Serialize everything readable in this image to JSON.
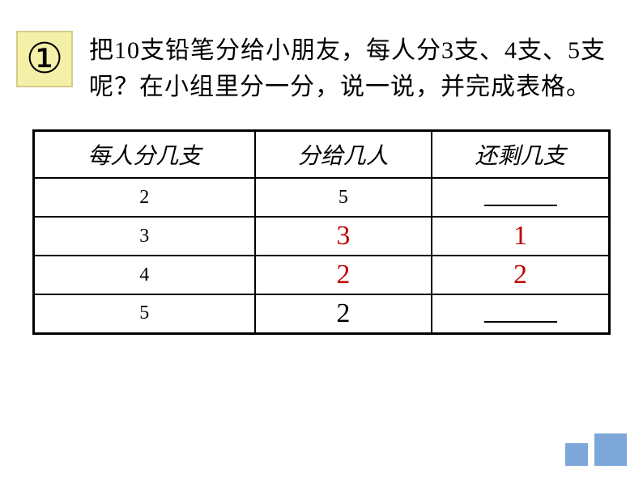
{
  "badge": {
    "number": "①",
    "bg_color": "#f5f0a8",
    "border_color": "#d4cc8a"
  },
  "problem": {
    "text": "把10支铅笔分给小朋友，每人分3支、4支、5支呢？在小组里分一分，说一说，并完成表格。"
  },
  "table": {
    "headers": [
      "每人分几支",
      "分给几人",
      "还剩几支"
    ],
    "rows": [
      {
        "col1": "2",
        "col2": "5",
        "col3_blank": true
      },
      {
        "col1": "3",
        "col2": "3",
        "col3": "1",
        "col2_red": true,
        "col3_red": true
      },
      {
        "col1": "4",
        "col2": "2",
        "col3": "2",
        "col2_red": true,
        "col3_red": true
      },
      {
        "col1": "5",
        "col2": "2",
        "col3_blank": true,
        "col2_big": true
      }
    ],
    "answer_color": "#c00000",
    "border_color": "#000000"
  },
  "footer": {
    "square_color": "#7da7d9"
  }
}
